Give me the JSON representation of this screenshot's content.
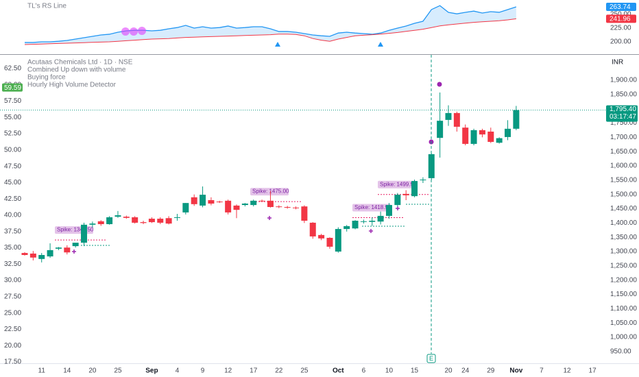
{
  "chart_data": [
    {
      "type": "line",
      "title": "TL's RS Line",
      "series": [
        {
          "color": "#2196f3",
          "values": [
            198.8,
            198.8,
            200,
            200,
            201,
            202.5,
            205,
            207.5,
            210,
            212.5,
            213.8,
            217.5,
            220,
            221,
            221,
            220,
            221,
            223.8,
            226,
            230,
            225,
            227.5,
            225,
            226,
            228.8,
            225,
            226,
            227.5,
            227.5,
            223.8,
            218.8,
            218.8,
            217.5,
            215,
            212.5,
            211,
            210,
            216,
            217.5,
            216,
            215,
            213.8,
            216,
            221,
            225,
            228.8,
            233.8,
            237.5,
            258.8,
            266,
            253.8,
            251,
            253.8,
            256,
            252.5,
            255,
            253.8,
            258.8,
            263.74,
            null,
            null,
            null,
            null,
            null,
            null,
            null,
            null,
            null,
            null
          ]
        },
        {
          "color": "#f23645",
          "values": [
            195,
            195.5,
            196,
            196.5,
            197,
            197.5,
            198,
            198.5,
            199,
            199.5,
            200,
            201,
            202,
            203,
            204,
            205,
            205.5,
            206,
            207,
            208,
            208.5,
            209,
            209.5,
            210,
            210.5,
            211,
            211.5,
            212,
            212.5,
            213,
            214,
            214,
            213.5,
            211,
            206,
            203,
            201,
            205,
            208,
            211,
            212,
            213,
            214,
            215.5,
            217,
            219,
            221,
            223,
            226,
            229,
            231,
            232.5,
            234,
            235.5,
            236.5,
            237.5,
            238.5,
            240,
            241.96,
            null,
            null,
            null,
            null,
            null,
            null,
            null,
            null,
            null,
            null
          ]
        }
      ],
      "ylim": [
        178.75,
        276.25
      ],
      "yticks": [
        {
          "value": 200,
          "label": "200.00"
        },
        {
          "value": 225,
          "label": "225.00"
        },
        {
          "value": 250,
          "label": "250.00"
        }
      ]
    },
    {
      "type": "candlestick",
      "title": "Acutaas Chemicals Ltd · 1D · NSE",
      "indicators": [
        "Combined Up down with volume",
        "Buying force",
        "Hourly High Volume Detector"
      ],
      "currency": "INR",
      "categories": [
        null,
        null,
        "11",
        null,
        null,
        "14",
        null,
        null,
        "20",
        null,
        null,
        "25",
        null,
        null,
        null,
        "Sep",
        null,
        null,
        "4",
        null,
        null,
        "9",
        null,
        null,
        "12",
        null,
        null,
        "17",
        null,
        null,
        "22",
        null,
        null,
        "25",
        null,
        null,
        null,
        "Oct",
        null,
        null,
        "6",
        null,
        null,
        "10",
        null,
        null,
        "15",
        null,
        null,
        null,
        "20",
        null,
        "24",
        null,
        null,
        "29",
        null,
        null,
        "Nov",
        null,
        null,
        "7",
        null,
        null,
        "12",
        null,
        null,
        "17",
        null
      ],
      "open": [
        1295,
        1293,
        1274,
        1283,
        1310,
        1314,
        1319,
        1331,
        1394,
        1406,
        1396,
        1422,
        1422,
        1420,
        1403,
        1415,
        1415,
        1417,
        1418,
        1437,
        1490,
        1461,
        1480,
        1475,
        1478,
        1461,
        1463,
        1463,
        1478,
        1478,
        1458,
        1456,
        1454,
        1458,
        1401,
        1358,
        1348,
        1300,
        1379,
        1381,
        1405,
        1404,
        1405,
        1425,
        1463,
        1502,
        1494,
        1550,
        1557,
        1698,
        1761,
        1785,
        1734,
        1677,
        1725,
        1720,
        1681,
        1701,
        1730,
        null,
        null,
        null,
        null,
        null,
        null,
        null,
        null,
        null,
        null
      ],
      "high": [
        1298,
        1302,
        1295,
        1329,
        1316,
        1322,
        1326,
        1401,
        1405,
        1410,
        1424,
        1442,
        1426,
        1424,
        1408,
        1420,
        1420,
        1424,
        1432,
        1470,
        1500,
        1528,
        1490,
        1478,
        1482,
        1465,
        1470,
        1482,
        1482,
        1512,
        1462,
        1460,
        1458,
        1462,
        1403,
        1362,
        1350,
        1385,
        1393,
        1410,
        1412,
        1420,
        1440,
        1470,
        1505,
        1515,
        1552,
        1560,
        1645,
        1857,
        1812,
        1790,
        1745,
        1730,
        1730,
        1734,
        1700,
        1760,
        1810,
        null,
        null,
        null,
        null,
        null,
        null,
        null,
        null,
        null,
        null
      ],
      "low": [
        1286,
        1269,
        1262,
        1278,
        1305,
        1290,
        1314,
        1319,
        1385,
        1390,
        1394,
        1418,
        1415,
        1398,
        1396,
        1400,
        1396,
        1395,
        1408,
        1430,
        1460,
        1455,
        1462,
        1470,
        1430,
        1417,
        1458,
        1458,
        1474,
        1454,
        1452,
        1450,
        1448,
        1400,
        1345,
        1340,
        1310,
        1296,
        1370,
        1378,
        1398,
        1390,
        1395,
        1415,
        1458,
        1480,
        1490,
        1540,
        1550,
        1629,
        1740,
        1720,
        1672,
        1672,
        1700,
        1680,
        1678,
        1690,
        1725,
        null,
        null,
        null,
        null,
        null,
        null,
        null,
        null,
        null,
        null
      ],
      "close": [
        1288,
        1279,
        1288,
        1305,
        1314,
        1297,
        1331,
        1394,
        1398,
        1396,
        1420,
        1427,
        1418,
        1401,
        1400,
        1403,
        1401,
        1398,
        1420,
        1470,
        1466,
        1499,
        1468,
        1473,
        1437,
        1446,
        1468,
        1478,
        1476,
        1456,
        1456,
        1455,
        1452,
        1408,
        1353,
        1346,
        1317,
        1379,
        1389,
        1408,
        1406,
        1408,
        1425,
        1463,
        1499,
        1497,
        1547,
        1552,
        1641,
        1758,
        1785,
        1737,
        1677,
        1725,
        1710,
        1684,
        1697,
        1730,
        1795.4,
        null,
        null,
        null,
        null,
        null,
        null,
        null,
        null,
        null,
        null
      ],
      "up_color": "#089981",
      "down_color": "#f23645",
      "last_price_label": "1,795.40",
      "countdown": "03:17:47",
      "ylim": [
        908.8,
        1988.8
      ],
      "yticks": [
        {
          "value": 950,
          "label": "950.00"
        },
        {
          "value": 1000,
          "label": "1,000.00"
        },
        {
          "value": 1050,
          "label": "1,050.00"
        },
        {
          "value": 1100,
          "label": "1,100.00"
        },
        {
          "value": 1150,
          "label": "1,150.00"
        },
        {
          "value": 1200,
          "label": "1,200.00"
        },
        {
          "value": 1250,
          "label": "1,250.00"
        },
        {
          "value": 1300,
          "label": "1,300.00"
        },
        {
          "value": 1350,
          "label": "1,350.00"
        },
        {
          "value": 1400,
          "label": "1,400.00"
        },
        {
          "value": 1450,
          "label": "1,450.00"
        },
        {
          "value": 1500,
          "label": "1,500.00"
        },
        {
          "value": 1550,
          "label": "1,550.00"
        },
        {
          "value": 1600,
          "label": "1,600.00"
        },
        {
          "value": 1650,
          "label": "1,650.00"
        },
        {
          "value": 1700,
          "label": "1,700.00"
        },
        {
          "value": 1750,
          "label": "1,750.00"
        },
        {
          "value": 1800,
          "label": "1,800.00"
        },
        {
          "value": 1850,
          "label": "1,850.00"
        },
        {
          "value": 1900,
          "label": "1,900.00"
        }
      ],
      "y2lim": [
        17.29,
        64.6
      ],
      "y2ticks": [
        {
          "value": 17.5,
          "label": "17.50"
        },
        {
          "value": 20,
          "label": "20.00"
        },
        {
          "value": 22.5,
          "label": "22.50"
        },
        {
          "value": 25,
          "label": "25.00"
        },
        {
          "value": 27.5,
          "label": "27.50"
        },
        {
          "value": 30,
          "label": "30.00"
        },
        {
          "value": 32.5,
          "label": "32.50"
        },
        {
          "value": 35,
          "label": "35.00"
        },
        {
          "value": 37.5,
          "label": "37.50"
        },
        {
          "value": 40,
          "label": "40.00"
        },
        {
          "value": 42.5,
          "label": "42.50"
        },
        {
          "value": 45,
          "label": "45.00"
        },
        {
          "value": 47.5,
          "label": "47.50"
        },
        {
          "value": 50,
          "label": "50.00"
        },
        {
          "value": 52.5,
          "label": "52.50"
        },
        {
          "value": 55,
          "label": "55.00"
        },
        {
          "value": 57.5,
          "label": "57.50"
        },
        {
          "value": 60,
          "label": "60.00"
        },
        {
          "value": 62.5,
          "label": "62.50"
        }
      ],
      "y2_marker": 59.59,
      "annotations": [
        {
          "text": "Spike: 1340.50",
          "value": 1340.5
        },
        {
          "text": "Spike: 1475.00",
          "value": 1475
        },
        {
          "text": "Spike: 1418.90",
          "value": 1418.9
        },
        {
          "text": "Spike: 1499.90",
          "value": 1499.9
        }
      ],
      "earnings_label": "E"
    }
  ]
}
